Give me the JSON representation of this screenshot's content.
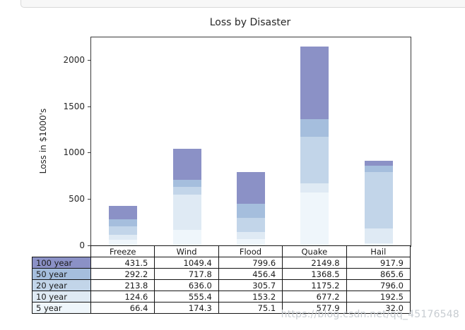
{
  "page": {
    "watermark": "https://blog.csdn.net/qq_45176548"
  },
  "chart_data": {
    "type": "bar",
    "variant": "overlaid-bars-with-data-table",
    "title": "Loss by Disaster",
    "xlabel": "",
    "ylabel": "Loss in $1000's",
    "categories": [
      "Freeze",
      "Wind",
      "Flood",
      "Quake",
      "Hail"
    ],
    "series": [
      {
        "name": "100 year",
        "color": "#8b91c6",
        "values": [
          431.5,
          1049.4,
          799.6,
          2149.8,
          917.9
        ]
      },
      {
        "name": "50 year",
        "color": "#a5bedd",
        "values": [
          292.2,
          717.8,
          456.4,
          1368.5,
          865.6
        ]
      },
      {
        "name": "20 year",
        "color": "#c2d5e9",
        "values": [
          213.8,
          636.0,
          305.7,
          1175.2,
          796.0
        ]
      },
      {
        "name": "10 year",
        "color": "#dfeaf4",
        "values": [
          124.6,
          555.4,
          153.2,
          677.2,
          192.5
        ]
      },
      {
        "name": "5 year",
        "color": "#eff6fb",
        "values": [
          66.4,
          174.3,
          75.1,
          577.9,
          32.0
        ]
      }
    ],
    "yticks": [
      0,
      500,
      1000,
      1500,
      2000
    ],
    "ylim": [
      0,
      2250
    ],
    "grid": false,
    "legend_position": "table-row-labels",
    "axis_color": "#3a3a3a",
    "table_border_color": "#141414"
  }
}
